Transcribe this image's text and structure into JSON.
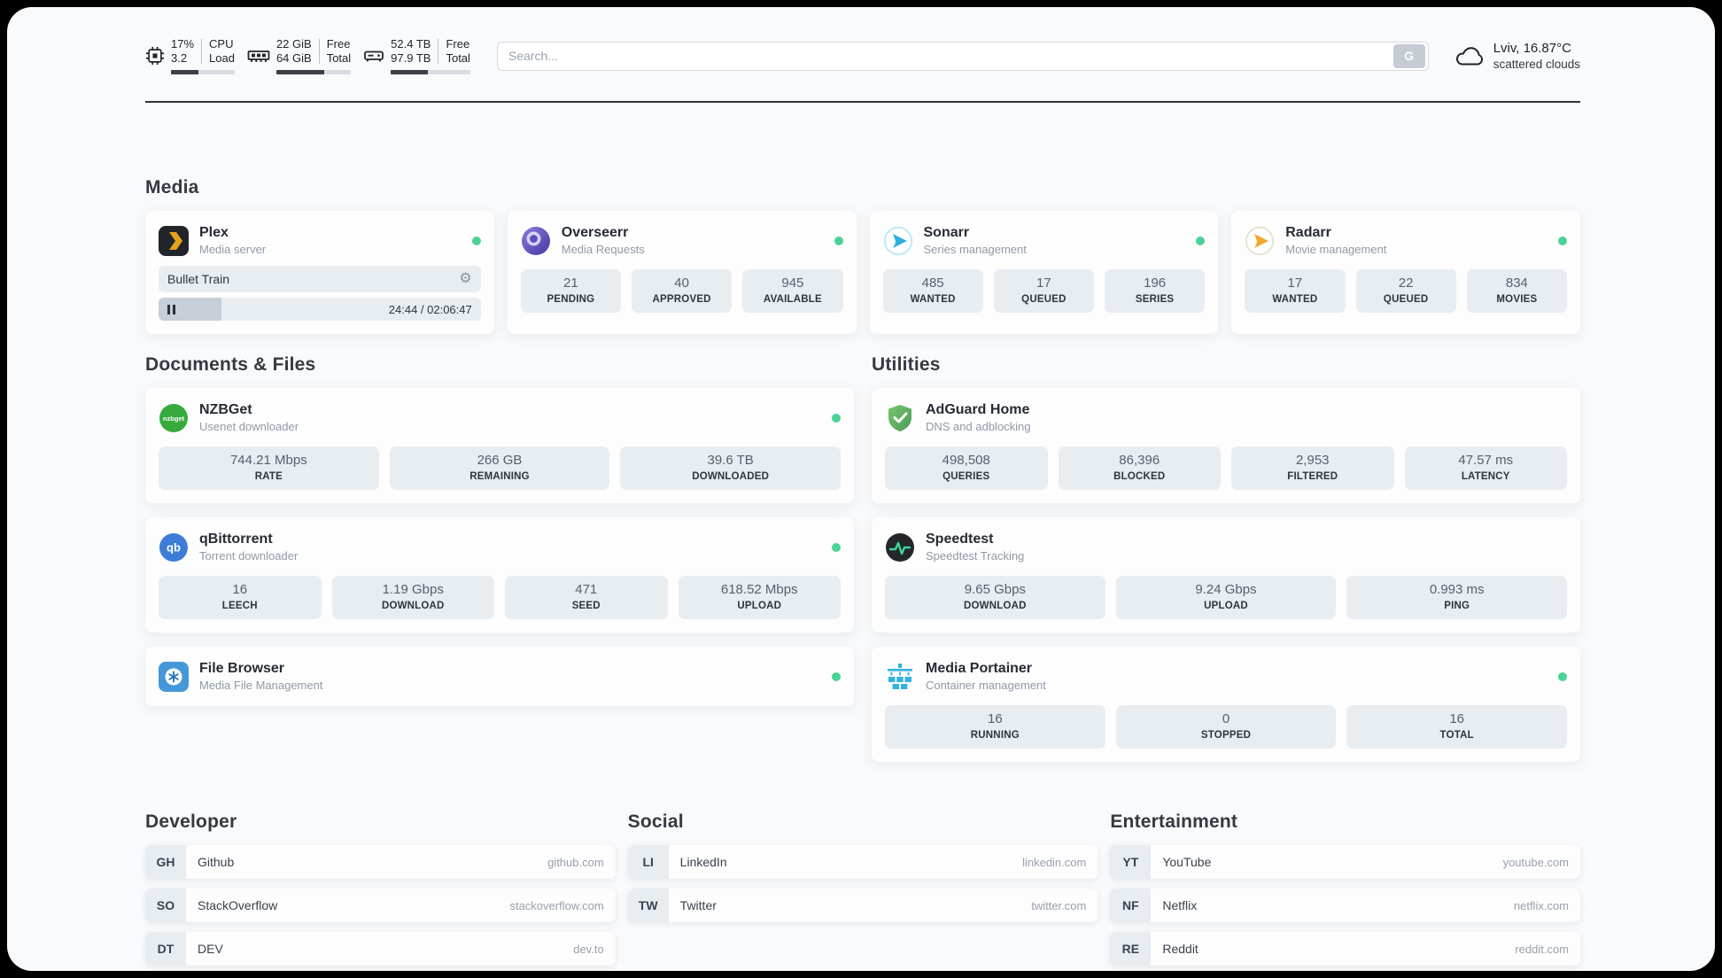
{
  "colors": {
    "status_green": "#4bd295",
    "stat_box_bg": "#e8edf2",
    "bar_fill": "#3a4046",
    "divider": "#30353b"
  },
  "topbar": {
    "cpu": {
      "value_top": "17%",
      "value_bottom": "3.2",
      "label_top": "CPU",
      "label_bottom": "Load",
      "bar_pct": 43
    },
    "ram": {
      "value_top": "22 GiB",
      "value_bottom": "64 GiB",
      "label_top": "Free",
      "label_bottom": "Total",
      "bar_pct": 64
    },
    "disk": {
      "value_top": "52.4 TB",
      "value_bottom": "97.9 TB",
      "label_top": "Free",
      "label_bottom": "Total",
      "bar_pct": 47
    },
    "search": {
      "placeholder": "Search...",
      "button_label": "G"
    },
    "weather": {
      "location": "Lviv, 16.87°C",
      "condition": "scattered clouds"
    }
  },
  "sections": {
    "media": {
      "heading": "Media",
      "plex": {
        "title": "Plex",
        "subtitle": "Media server",
        "online": true,
        "now_playing": "Bullet Train",
        "time": "24:44 / 02:06:47",
        "progress_pct": 19.5
      },
      "overseerr": {
        "title": "Overseerr",
        "subtitle": "Media Requests",
        "online": true,
        "stats": [
          {
            "value": "21",
            "label": "PENDING"
          },
          {
            "value": "40",
            "label": "APPROVED"
          },
          {
            "value": "945",
            "label": "AVAILABLE"
          }
        ]
      },
      "sonarr": {
        "title": "Sonarr",
        "subtitle": "Series management",
        "online": true,
        "stats": [
          {
            "value": "485",
            "label": "WANTED"
          },
          {
            "value": "17",
            "label": "QUEUED"
          },
          {
            "value": "196",
            "label": "SERIES"
          }
        ]
      },
      "radarr": {
        "title": "Radarr",
        "subtitle": "Movie management",
        "online": true,
        "stats": [
          {
            "value": "17",
            "label": "WANTED"
          },
          {
            "value": "22",
            "label": "QUEUED"
          },
          {
            "value": "834",
            "label": "MOVIES"
          }
        ]
      }
    },
    "documents": {
      "heading": "Documents & Files",
      "nzbget": {
        "title": "NZBGet",
        "subtitle": "Usenet downloader",
        "online": true,
        "stats": [
          {
            "value": "744.21 Mbps",
            "label": "RATE"
          },
          {
            "value": "266 GB",
            "label": "REMAINING"
          },
          {
            "value": "39.6 TB",
            "label": "DOWNLOADED"
          }
        ]
      },
      "qbittorrent": {
        "title": "qBittorrent",
        "subtitle": "Torrent downloader",
        "online": true,
        "stats": [
          {
            "value": "16",
            "label": "LEECH"
          },
          {
            "value": "1.19 Gbps",
            "label": "DOWNLOAD"
          },
          {
            "value": "471",
            "label": "SEED"
          },
          {
            "value": "618.52 Mbps",
            "label": "UPLOAD"
          }
        ]
      },
      "filebrowser": {
        "title": "File Browser",
        "subtitle": "Media File Management",
        "online": true
      }
    },
    "utilities": {
      "heading": "Utilities",
      "adguard": {
        "title": "AdGuard Home",
        "subtitle": "DNS and adblocking",
        "stats": [
          {
            "value": "498,508",
            "label": "QUERIES"
          },
          {
            "value": "86,396",
            "label": "BLOCKED"
          },
          {
            "value": "2,953",
            "label": "FILTERED"
          },
          {
            "value": "47.57 ms",
            "label": "LATENCY"
          }
        ]
      },
      "speedtest": {
        "title": "Speedtest",
        "subtitle": "Speedtest Tracking",
        "stats": [
          {
            "value": "9.65 Gbps",
            "label": "DOWNLOAD"
          },
          {
            "value": "9.24 Gbps",
            "label": "UPLOAD"
          },
          {
            "value": "0.993 ms",
            "label": "PING"
          }
        ]
      },
      "portainer": {
        "title": "Media Portainer",
        "subtitle": "Container management",
        "online": true,
        "stats": [
          {
            "value": "16",
            "label": "RUNNING"
          },
          {
            "value": "0",
            "label": "STOPPED"
          },
          {
            "value": "16",
            "label": "TOTAL"
          }
        ]
      }
    },
    "links": {
      "developer": {
        "heading": "Developer",
        "items": [
          {
            "abbr": "GH",
            "name": "Github",
            "domain": "github.com"
          },
          {
            "abbr": "SO",
            "name": "StackOverflow",
            "domain": "stackoverflow.com"
          },
          {
            "abbr": "DT",
            "name": "DEV",
            "domain": "dev.to"
          }
        ]
      },
      "social": {
        "heading": "Social",
        "items": [
          {
            "abbr": "LI",
            "name": "LinkedIn",
            "domain": "linkedin.com"
          },
          {
            "abbr": "TW",
            "name": "Twitter",
            "domain": "twitter.com"
          }
        ]
      },
      "entertainment": {
        "heading": "Entertainment",
        "items": [
          {
            "abbr": "YT",
            "name": "YouTube",
            "domain": "youtube.com"
          },
          {
            "abbr": "NF",
            "name": "Netflix",
            "domain": "netflix.com"
          },
          {
            "abbr": "RE",
            "name": "Reddit",
            "domain": "reddit.com"
          }
        ]
      }
    }
  }
}
